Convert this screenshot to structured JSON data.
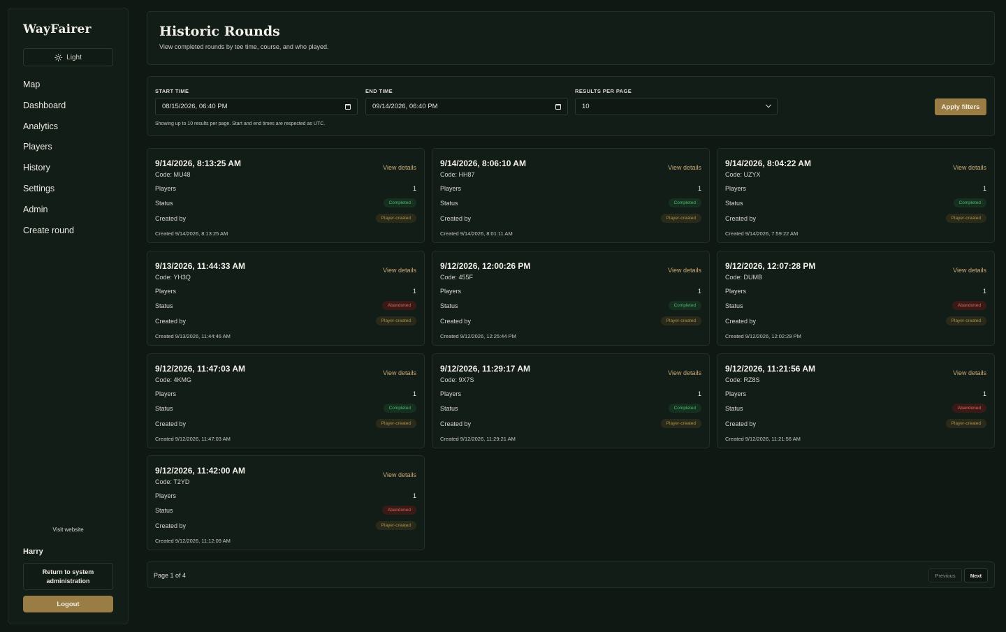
{
  "sidebar": {
    "brand": "WayFairer",
    "theme_label": "Light",
    "nav": [
      "Map",
      "Dashboard",
      "Analytics",
      "Players",
      "History",
      "Settings",
      "Admin",
      "Create round"
    ],
    "visit_label": "Visit website",
    "user_name": "Harry",
    "return_label": "Return to system administration",
    "logout_label": "Logout"
  },
  "header": {
    "title": "Historic Rounds",
    "subtitle": "View completed rounds by tee time, course, and who played."
  },
  "filters": {
    "start_label": "START TIME",
    "start_value": "08/15/2026, 06:40 PM",
    "end_label": "END TIME",
    "end_value": "09/14/2026, 06:40 PM",
    "per_page_label": "RESULTS PER PAGE",
    "per_page_value": "10",
    "note": "Showing up to 10 results per page. Start and end times are respected as UTC.",
    "apply_label": "Apply filters"
  },
  "card_labels": {
    "view": "View details",
    "players": "Players",
    "status": "Status",
    "created_by": "Created by"
  },
  "rounds": [
    {
      "time": "9/14/2026, 8:13:25 AM",
      "code": "Code: MU48",
      "players": "1",
      "status": "Completed",
      "created_by": "Player-created",
      "created": "Created 9/14/2026, 8:13:25 AM"
    },
    {
      "time": "9/14/2026, 8:06:10 AM",
      "code": "Code: HH87",
      "players": "1",
      "status": "Completed",
      "created_by": "Player-created",
      "created": "Created 9/14/2026, 8:01:11 AM"
    },
    {
      "time": "9/14/2026, 8:04:22 AM",
      "code": "Code: UZYX",
      "players": "1",
      "status": "Completed",
      "created_by": "Player-created",
      "created": "Created 9/14/2026, 7:59:22 AM"
    },
    {
      "time": "9/13/2026, 11:44:33 AM",
      "code": "Code: YH3Q",
      "players": "1",
      "status": "Abandoned",
      "created_by": "Player-created",
      "created": "Created 9/13/2026, 11:44:46 AM"
    },
    {
      "time": "9/12/2026, 12:00:26 PM",
      "code": "Code: 455F",
      "players": "1",
      "status": "Completed",
      "created_by": "Player-created",
      "created": "Created 9/12/2026, 12:25:44 PM"
    },
    {
      "time": "9/12/2026, 12:07:28 PM",
      "code": "Code: DUMB",
      "players": "1",
      "status": "Abandoned",
      "created_by": "Player-created",
      "created": "Created 9/12/2026, 12:02:29 PM"
    },
    {
      "time": "9/12/2026, 11:47:03 AM",
      "code": "Code: 4KMG",
      "players": "1",
      "status": "Completed",
      "created_by": "Player-created",
      "created": "Created 9/12/2026, 11:47:03 AM"
    },
    {
      "time": "9/12/2026, 11:29:17 AM",
      "code": "Code: 9X7S",
      "players": "1",
      "status": "Completed",
      "created_by": "Player-created",
      "created": "Created 9/12/2026, 11:29:21 AM"
    },
    {
      "time": "9/12/2026, 11:21:56 AM",
      "code": "Code: RZ8S",
      "players": "1",
      "status": "Abandoned",
      "created_by": "Player-created",
      "created": "Created 9/12/2026, 11:21:56 AM"
    },
    {
      "time": "9/12/2026, 11:42:00 AM",
      "code": "Code: T2YD",
      "players": "1",
      "status": "Abandoned",
      "created_by": "Player-created",
      "created": "Created 9/12/2026, 11:12:09 AM"
    }
  ],
  "pagination": {
    "info": "Page 1 of 4",
    "prev_label": "Previous",
    "next_label": "Next"
  },
  "colors": {
    "accent": "#9a7c45",
    "completed": "#4fb370",
    "abandoned": "#d86a5c"
  }
}
